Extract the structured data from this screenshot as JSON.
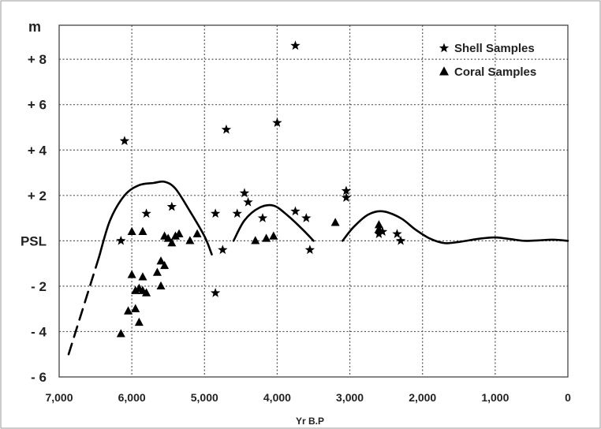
{
  "chart_data": {
    "type": "scatter",
    "title": "",
    "ylabel": "m",
    "xlabel": "Yr B.P",
    "xlim": [
      7000,
      0
    ],
    "ylim": [
      -6,
      9.5
    ],
    "x_ticks": [
      {
        "value": 7000,
        "label": "7,000"
      },
      {
        "value": 6000,
        "label": "6,000"
      },
      {
        "value": 5000,
        "label": "5,000"
      },
      {
        "value": 4000,
        "label": "4,000"
      },
      {
        "value": 3000,
        "label": "3,000"
      },
      {
        "value": 2000,
        "label": "2,000"
      },
      {
        "value": 1000,
        "label": "1,000"
      },
      {
        "value": 0,
        "label": "0"
      }
    ],
    "y_ticks": [
      {
        "value": 8,
        "label": "+ 8"
      },
      {
        "value": 6,
        "label": "+ 6"
      },
      {
        "value": 4,
        "label": "+ 4"
      },
      {
        "value": 2,
        "label": "+ 2"
      },
      {
        "value": 0,
        "label": "PSL"
      },
      {
        "value": -2,
        "label": "- 2"
      },
      {
        "value": -4,
        "label": "- 4"
      },
      {
        "value": -6,
        "label": "- 6"
      }
    ],
    "grid": true,
    "legend_position": "top-right",
    "series": [
      {
        "name": "Shell Samples",
        "marker": "star",
        "points": [
          [
            6100,
            4.4
          ],
          [
            6150,
            0.0
          ],
          [
            5800,
            1.2
          ],
          [
            5450,
            1.5
          ],
          [
            4850,
            1.2
          ],
          [
            4850,
            -2.3
          ],
          [
            4750,
            -0.4
          ],
          [
            4700,
            4.9
          ],
          [
            4550,
            1.2
          ],
          [
            4450,
            2.1
          ],
          [
            4400,
            1.7
          ],
          [
            4200,
            1.0
          ],
          [
            4000,
            5.2
          ],
          [
            3750,
            8.6
          ],
          [
            3750,
            1.3
          ],
          [
            3600,
            1.0
          ],
          [
            3550,
            -0.4
          ],
          [
            3050,
            2.2
          ],
          [
            3050,
            1.9
          ],
          [
            2600,
            0.3
          ],
          [
            2550,
            0.4
          ],
          [
            2350,
            0.3
          ],
          [
            2300,
            0.0
          ]
        ]
      },
      {
        "name": "Coral Samples",
        "marker": "triangle",
        "points": [
          [
            6150,
            -4.1
          ],
          [
            6050,
            -3.1
          ],
          [
            6000,
            0.4
          ],
          [
            6000,
            -1.5
          ],
          [
            5950,
            -2.2
          ],
          [
            5950,
            -3.0
          ],
          [
            5900,
            -2.1
          ],
          [
            5900,
            -3.6
          ],
          [
            5850,
            0.4
          ],
          [
            5850,
            -1.6
          ],
          [
            5850,
            -2.2
          ],
          [
            5800,
            -2.3
          ],
          [
            5650,
            -1.4
          ],
          [
            5600,
            -0.9
          ],
          [
            5600,
            -2.0
          ],
          [
            5550,
            -1.1
          ],
          [
            5550,
            0.2
          ],
          [
            5500,
            0.1
          ],
          [
            5450,
            -0.1
          ],
          [
            5400,
            0.2
          ],
          [
            5350,
            0.3
          ],
          [
            5200,
            0.0
          ],
          [
            5100,
            0.3
          ],
          [
            4300,
            0.0
          ],
          [
            4150,
            0.1
          ],
          [
            4050,
            0.2
          ],
          [
            3200,
            0.8
          ],
          [
            2600,
            0.7
          ],
          [
            2600,
            0.5
          ]
        ]
      }
    ],
    "curves": [
      {
        "name": "",
        "style": "dashed",
        "points": [
          [
            6870,
            -5.0
          ],
          [
            6450,
            -0.7
          ]
        ]
      },
      {
        "name": "",
        "style": "solid",
        "points": [
          [
            6450,
            -0.7
          ],
          [
            6300,
            0.9
          ],
          [
            6100,
            2.0
          ],
          [
            5900,
            2.45
          ],
          [
            5700,
            2.55
          ],
          [
            5550,
            2.6
          ],
          [
            5400,
            2.3
          ],
          [
            5200,
            1.3
          ],
          [
            5000,
            0.2
          ],
          [
            4900,
            -0.6
          ]
        ]
      },
      {
        "name": "",
        "style": "solid",
        "points": [
          [
            4600,
            0.0
          ],
          [
            4450,
            0.9
          ],
          [
            4250,
            1.45
          ],
          [
            4050,
            1.55
          ],
          [
            3850,
            1.1
          ],
          [
            3650,
            0.5
          ],
          [
            3500,
            0.0
          ]
        ]
      },
      {
        "name": "",
        "style": "solid",
        "points": [
          [
            3100,
            0.0
          ],
          [
            2950,
            0.6
          ],
          [
            2750,
            1.15
          ],
          [
            2550,
            1.3
          ],
          [
            2300,
            1.0
          ],
          [
            2100,
            0.5
          ],
          [
            1900,
            0.1
          ],
          [
            1700,
            -0.1
          ],
          [
            1500,
            -0.05
          ],
          [
            1200,
            0.1
          ],
          [
            1000,
            0.15
          ],
          [
            800,
            0.08
          ],
          [
            600,
            0.0
          ],
          [
            400,
            0.02
          ],
          [
            200,
            0.05
          ],
          [
            0,
            0.0
          ]
        ]
      }
    ]
  },
  "colors": {
    "ink": "#000000",
    "grid": "#555555",
    "frame": "#9a9a9a",
    "background": "#ffffff"
  }
}
